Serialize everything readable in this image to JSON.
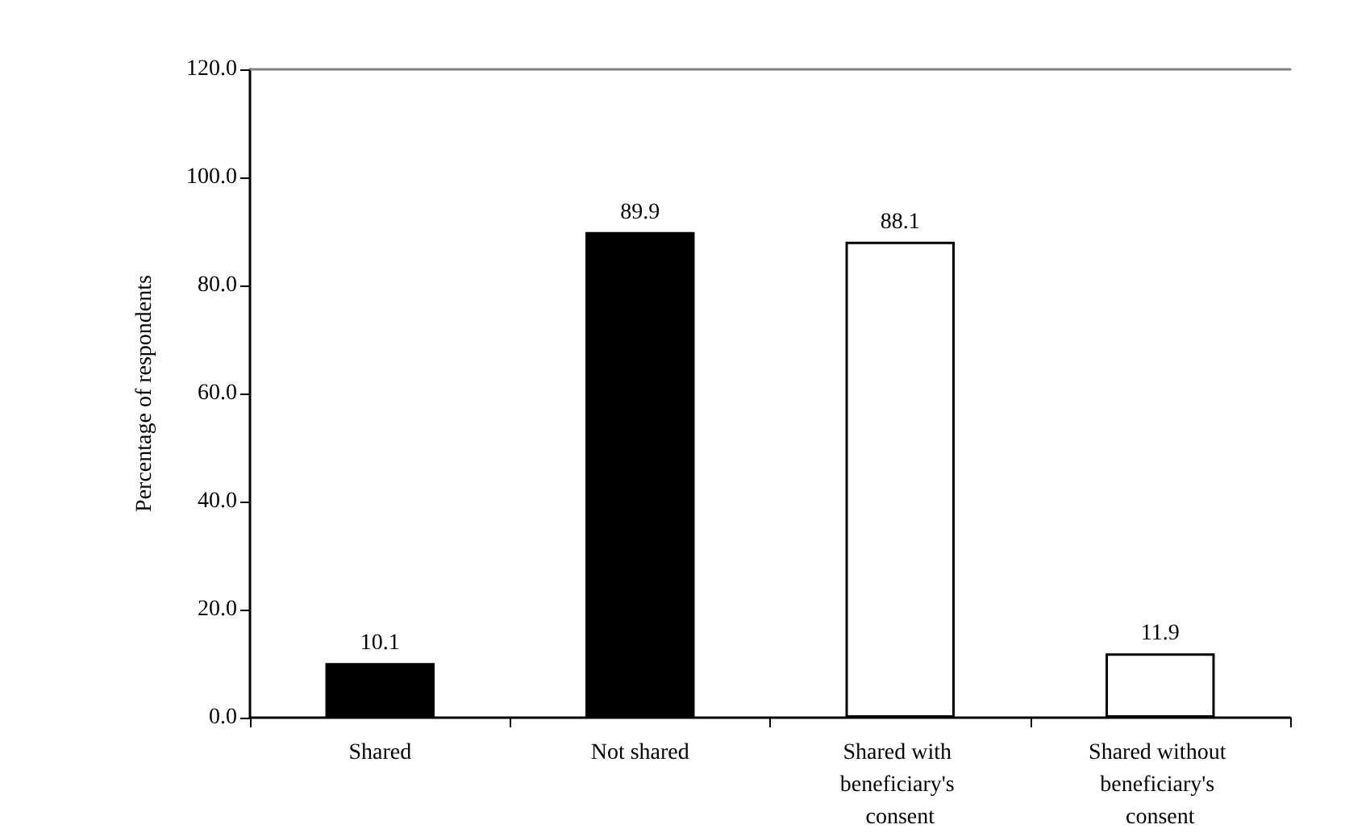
{
  "chart_data": {
    "type": "bar",
    "ylabel": "Percentage of respondents",
    "categories": [
      "Shared",
      "Not shared",
      "Shared with beneficiary's consent",
      "Shared without beneficiary's consent"
    ],
    "values": [
      10.1,
      89.9,
      88.1,
      11.9
    ],
    "colors": [
      "#000000",
      "#000000",
      "#ffffff",
      "#ffffff"
    ],
    "ylim": [
      0,
      120
    ],
    "yticks": [
      {
        "value": 0,
        "label": "0.0"
      },
      {
        "value": 20,
        "label": "20.0"
      },
      {
        "value": 40,
        "label": "40.0"
      },
      {
        "value": 60,
        "label": "60.0"
      },
      {
        "value": 80,
        "label": "80.0"
      },
      {
        "value": 100,
        "label": "100.0"
      },
      {
        "value": 120,
        "label": "120.0"
      }
    ],
    "data_labels": true,
    "grid": false
  }
}
